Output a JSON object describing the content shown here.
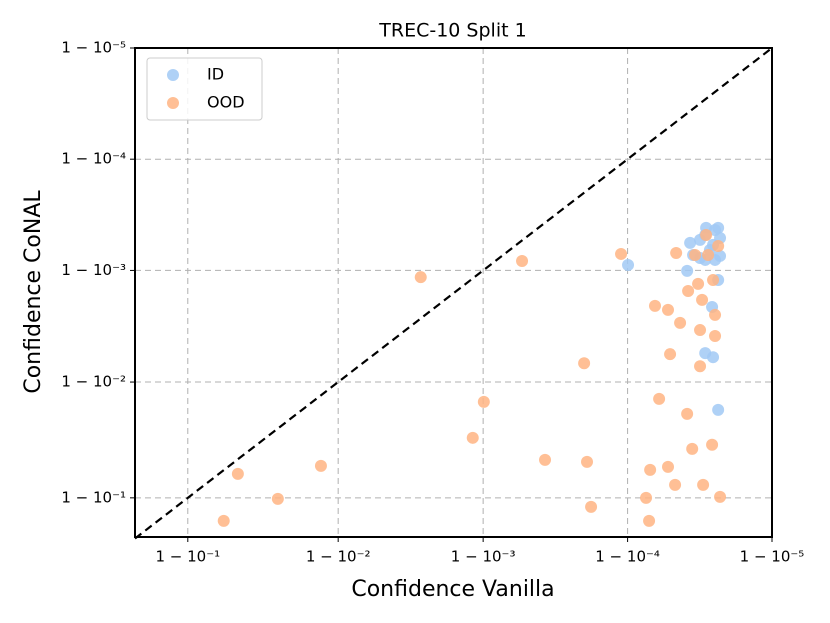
{
  "chart_data": {
    "type": "scatter",
    "title": "TREC-10 Split 1",
    "x_label": "Confidence Vanilla",
    "y_label": "Confidence CoNAL",
    "scale": "logit",
    "grid": true,
    "legend": "upper left",
    "xlim": [
      0.795,
      0.99999
    ],
    "ylim": [
      0.8,
      0.99999
    ],
    "xticks": [
      {
        "value": 0.9,
        "label": "1 − 10⁻¹"
      },
      {
        "value": 0.99,
        "label": "1 − 10⁻²"
      },
      {
        "value": 0.999,
        "label": "1 − 10⁻³"
      },
      {
        "value": 0.9999,
        "label": "1 − 10⁻⁴"
      },
      {
        "value": 0.99999,
        "label": "1 − 10⁻⁵"
      }
    ],
    "yticks": [
      {
        "value": 0.9,
        "label": "1 − 10⁻¹"
      },
      {
        "value": 0.99,
        "label": "1 − 10⁻²"
      },
      {
        "value": 0.999,
        "label": "1 − 10⁻³"
      },
      {
        "value": 0.9999,
        "label": "1 − 10⁻⁴"
      },
      {
        "value": 0.99999,
        "label": "1 − 10⁻⁵"
      }
    ],
    "series": [
      {
        "name": "ID",
        "color": "#a1c9f4",
        "x": [
          0.9999007,
          0.9999613,
          0.9999631,
          0.9999648,
          0.9999685,
          0.999971,
          0.9999731,
          0.9999744,
          0.9999764,
          0.9999771,
          0.9999752,
          0.999971,
          0.9999764,
          0.999974,
          0.999971,
          0.9999744,
          0.9999764,
          0.9999771,
          0.9999685,
          0.9999714,
          0.9999752
        ],
        "values": [
          0.999107,
          0.99899,
          0.999434,
          0.999274,
          0.999468,
          0.99952,
          0.999345,
          0.99941,
          0.999585,
          0.999489,
          0.999195,
          0.999195,
          0.99878,
          0.99787,
          0.99448,
          0.994,
          0.98233,
          0.999259,
          0.999227,
          0.999585,
          0.999567
        ]
      },
      {
        "name": "OOD",
        "color": "#ffb482",
        "x": [
          0.9973,
          0.999462,
          0.999889,
          0.9998,
          0.999011,
          0.99882,
          0.999627,
          0.999809,
          0.9999395,
          0.9999613,
          0.9999302,
          0.9999475,
          0.9999643,
          0.999974,
          0.9999255,
          0.9999531,
          0.99997,
          0.9999771,
          0.999929,
          0.999821,
          0.94104,
          0.95238,
          0.97425,
          0.98688,
          0.9999539,
          0.9999659,
          0.9999714,
          0.9999764,
          0.9999723,
          0.9999354,
          0.9999475,
          0.9999567,
          0.9999619,
          0.9999675,
          0.9999695,
          0.9999744,
          0.9999752,
          0.9999685,
          0.9999752,
          0.9999492,
          0.9999685
        ],
        "values": [
          0.99885,
          0.999178,
          0.999289,
          0.99321,
          0.98499,
          0.96894,
          0.95185,
          0.94993,
          0.98588,
          0.98084,
          0.94142,
          0.94475,
          0.96124,
          0.96429,
          0.9,
          0.92175,
          0.92175,
          0.90177,
          0.84802,
          0.8818,
          0.84802,
          0.93667,
          0.89806,
          0.94583,
          0.999303,
          0.999274,
          0.99952,
          0.999397,
          0.999274,
          0.99792,
          0.99774,
          0.99704,
          0.99847,
          0.99868,
          0.99816,
          0.99878,
          0.99612,
          0.99657,
          0.99749,
          0.99436,
          0.99277
        ]
      }
    ]
  }
}
